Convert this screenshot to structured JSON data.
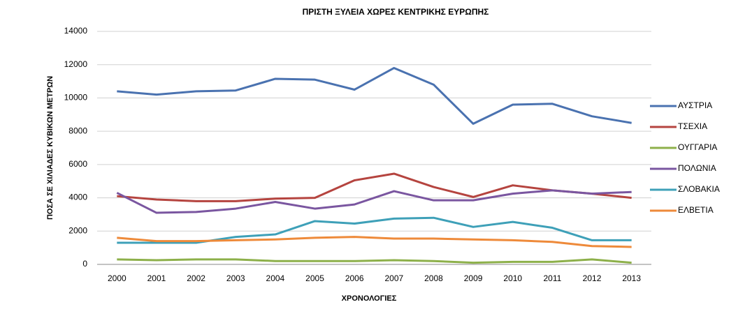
{
  "chart_data": {
    "type": "line",
    "title": "ΠΡΙΣΤΗ ΞΥΛΕΙΑ ΧΩΡΕΣ ΚΕΝΤΡΙΚΗΣ ΕΥΡΩΠΗΣ",
    "x_label": "ΧΡΟΝΟΛΟΓΙΕΣ",
    "y_label": "ΠΟΣΑ ΣΕ ΧΙΛΙΑΔΕΣ ΚΥΒΙΚΩΝ ΜΕΤΡΩΝ",
    "categories": [
      "2000",
      "2001",
      "2002",
      "2003",
      "2004",
      "2005",
      "2006",
      "2007",
      "2008",
      "2009",
      "2010",
      "2011",
      "2012",
      "2013"
    ],
    "series": [
      {
        "name": "ΑΥΣΤΡΙΑ",
        "color": "#4a72b0",
        "values": [
          10400,
          10200,
          10400,
          10450,
          11150,
          11100,
          10500,
          11800,
          10800,
          8450,
          9600,
          9650,
          8900,
          8500
        ]
      },
      {
        "name": "ΤΣΕΧΙΑ",
        "color": "#b5443f",
        "values": [
          4100,
          3900,
          3800,
          3800,
          3950,
          4000,
          5050,
          5450,
          4650,
          4050,
          4750,
          4450,
          4250,
          4000
        ]
      },
      {
        "name": "ΟΥΓΓΑΡΙΑ",
        "color": "#8db04a",
        "values": [
          300,
          250,
          300,
          300,
          200,
          200,
          200,
          250,
          200,
          100,
          150,
          150,
          300,
          100
        ]
      },
      {
        "name": "ΠΟΛΩΝΙΑ",
        "color": "#7a56a0",
        "values": [
          4300,
          3100,
          3150,
          3350,
          3750,
          3350,
          3600,
          4400,
          3850,
          3850,
          4250,
          4450,
          4250,
          4350
        ]
      },
      {
        "name": "ΣΛΟΒΑΚΙΑ",
        "color": "#3ea0b8",
        "values": [
          1300,
          1300,
          1300,
          1650,
          1800,
          2600,
          2450,
          2750,
          2800,
          2250,
          2550,
          2200,
          1450,
          1450
        ]
      },
      {
        "name": "ΕΛΒΕΤΙΑ",
        "color": "#ee8a3a",
        "values": [
          1600,
          1400,
          1400,
          1450,
          1500,
          1600,
          1650,
          1550,
          1550,
          1500,
          1450,
          1350,
          1100,
          1050
        ]
      }
    ],
    "ylim": [
      0,
      14000
    ],
    "yticks": [
      0,
      2000,
      4000,
      6000,
      8000,
      10000,
      12000,
      14000
    ],
    "grid": true,
    "legend": "right"
  }
}
